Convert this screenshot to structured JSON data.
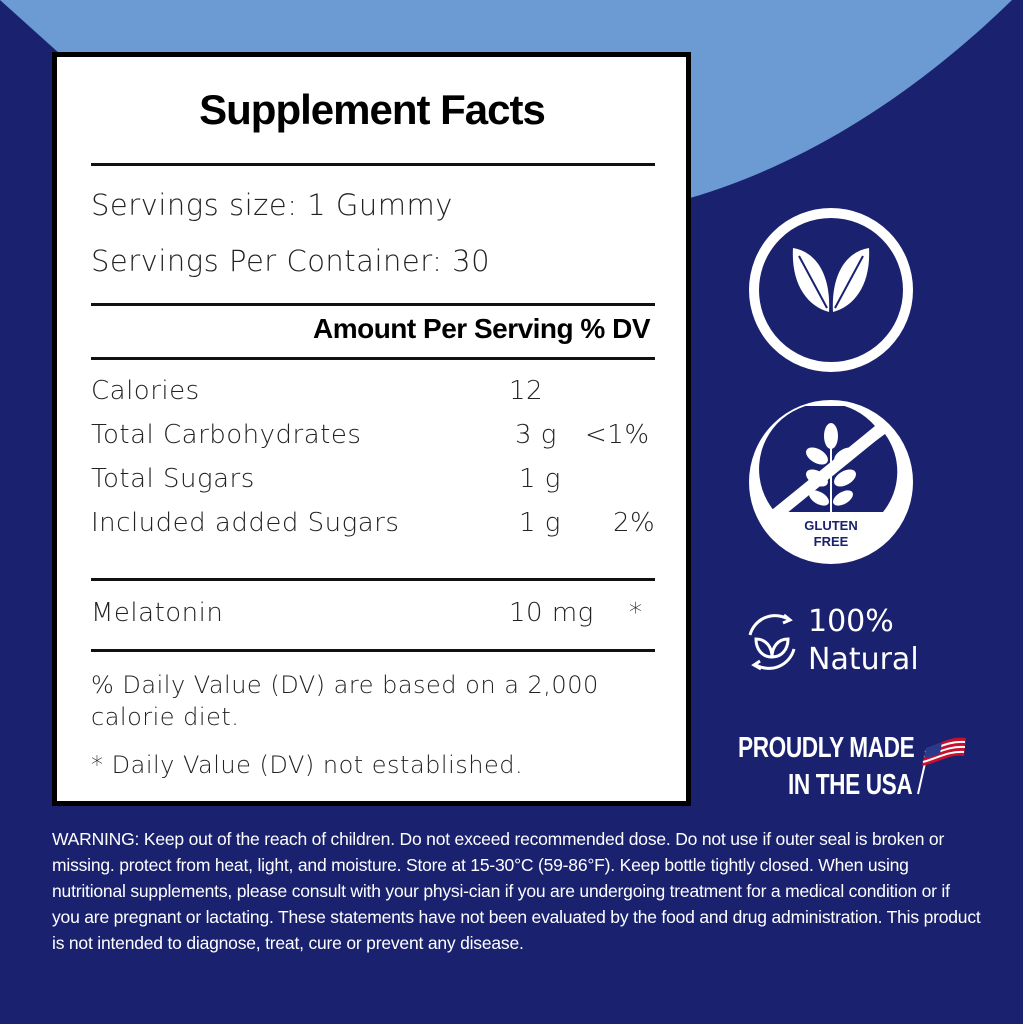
{
  "colors": {
    "background": "#1a2270",
    "accent_light_blue": "#6b9bd2",
    "label_bg": "#ffffff"
  },
  "facts": {
    "title": "Supplement Facts",
    "serving_size": "Servings size: 1 Gummy",
    "servings_per_container": "Servings Per Container: 30",
    "header": "Amount Per Serving % DV",
    "rows": [
      {
        "name": "Calories",
        "amount": "12",
        "dv": ""
      },
      {
        "name": "Total Carbohydrates",
        "amount": "3 g",
        "dv": "<1%"
      },
      {
        "name": "Total Sugars",
        "amount": "1 g",
        "dv": ""
      },
      {
        "name": "Included added Sugars",
        "amount": "1 g",
        "dv": "2%"
      }
    ],
    "melatonin": {
      "name": "Melatonin",
      "amount": "10 mg",
      "dv": "*"
    },
    "footnote1": "% Daily Value (DV) are based on a 2,000 calorie diet.",
    "footnote2": "* Daily Value (DV) not established."
  },
  "badges": {
    "vegan": {
      "label": "VEGAN",
      "icon": "leaf-icon"
    },
    "gluten": {
      "line1": "GLUTEN",
      "line2": "FREE",
      "icon": "wheat-crossed-icon"
    },
    "natural": {
      "line1": "100%",
      "line2": "Natural",
      "icon": "recycle-leaf-icon"
    },
    "usa": {
      "line1": "PROUDLY MADE",
      "line2": "IN THE USA",
      "icon": "us-flag-icon"
    }
  },
  "warning": "WARNING: Keep out of the reach of children. Do not exceed recommended dose. Do not use if outer seal is broken or missing. protect from heat, light, and moisture. Store at 15-30°C (59-86°F). Keep bottle tightly closed. When using nutritional supplements, please consult with your physi-cian if you are undergoing treatment for a medical condition or if you are pregnant or lactating. These statements have not been evaluated by the food and drug administration. This product is not intended to diagnose, treat, cure or prevent any disease."
}
